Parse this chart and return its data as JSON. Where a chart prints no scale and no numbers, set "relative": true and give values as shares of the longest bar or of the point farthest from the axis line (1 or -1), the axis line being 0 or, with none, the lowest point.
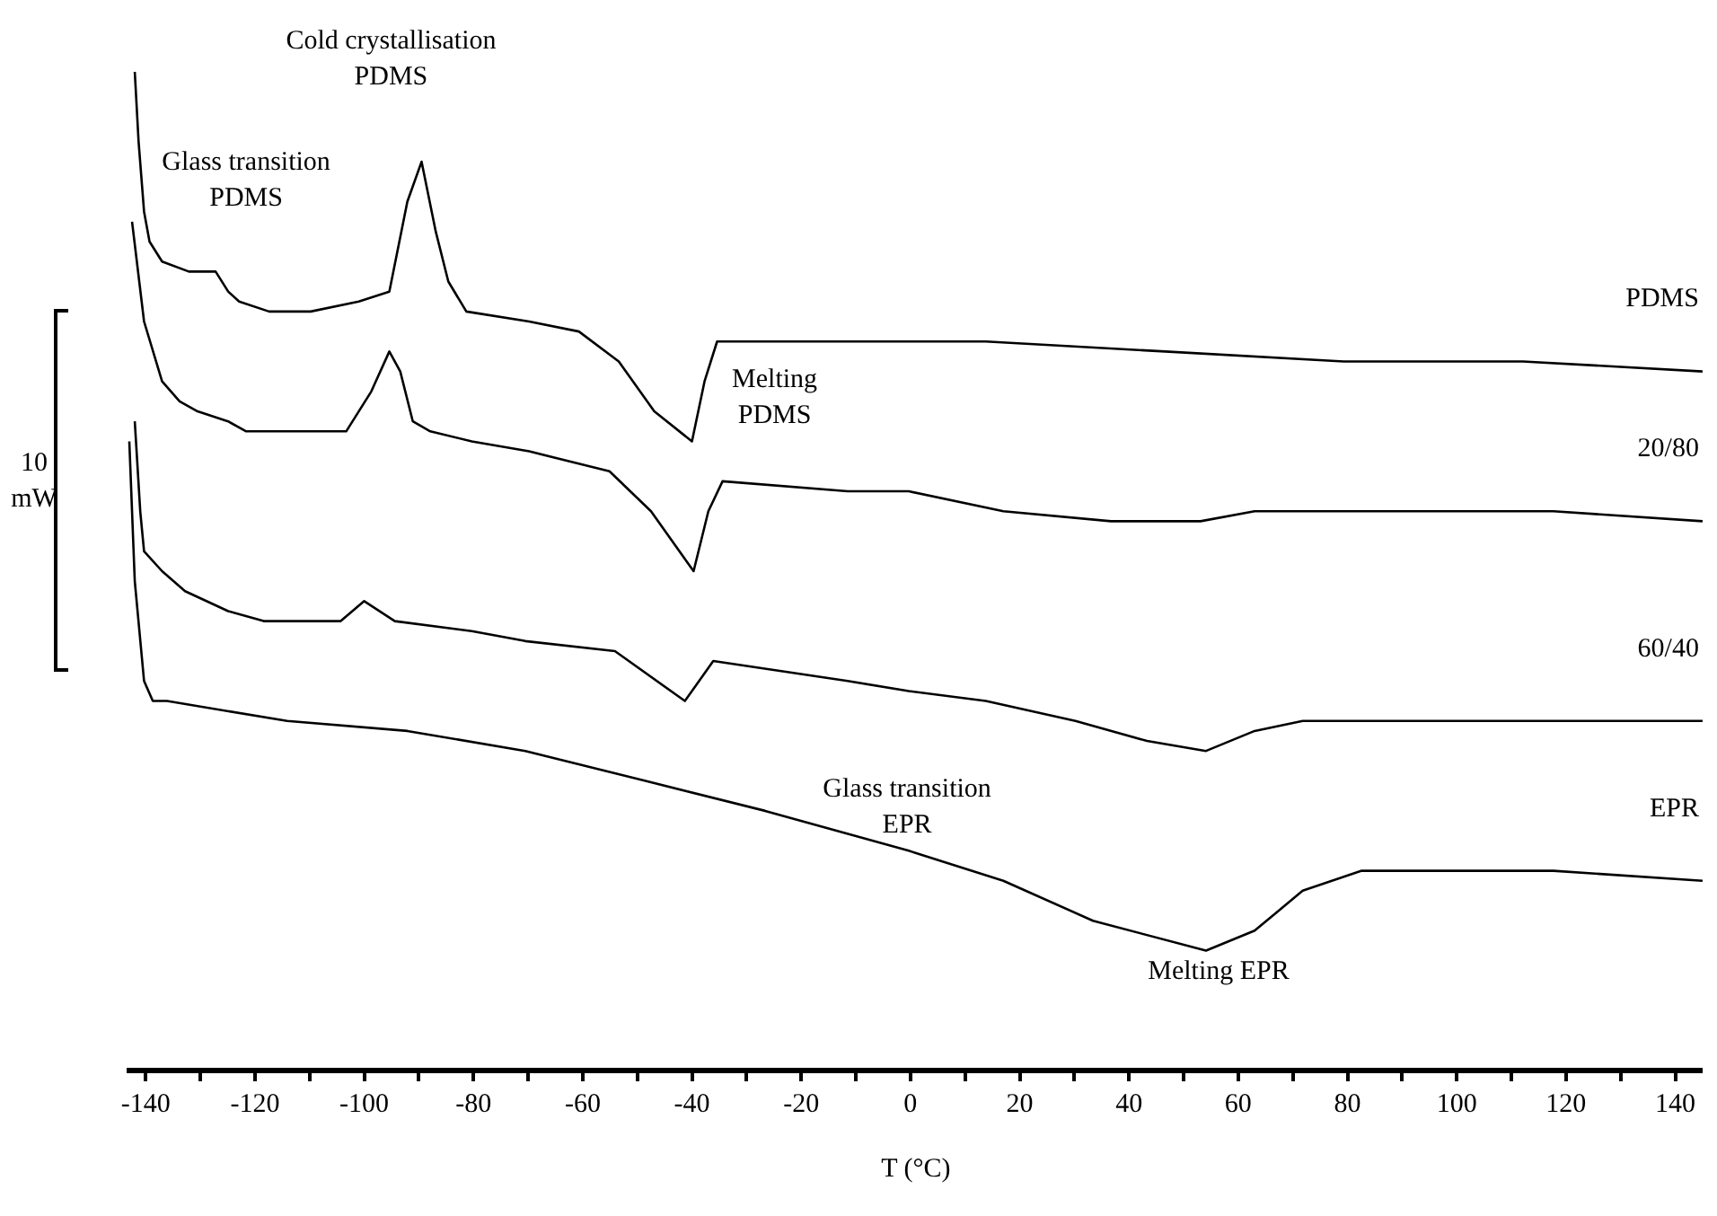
{
  "chart_data": {
    "type": "line",
    "relative": true,
    "xlabel": "T (°C)",
    "xlim": [
      -143,
      145
    ],
    "xticks": [
      -140,
      {
        "value": -130,
        "label": null
      },
      -120,
      {
        "value": -110,
        "label": null
      },
      -100,
      {
        "value": -90,
        "label": null
      },
      -80,
      {
        "value": -70,
        "label": null
      },
      -60,
      {
        "value": -50,
        "label": null
      },
      -40,
      {
        "value": -30,
        "label": null
      },
      -20,
      {
        "value": -10,
        "label": null
      },
      0,
      {
        "value": 10,
        "label": null
      },
      20,
      {
        "value": 30,
        "label": null
      },
      40,
      {
        "value": 50,
        "label": null
      },
      60,
      {
        "value": 70,
        "label": null
      },
      80,
      {
        "value": 90,
        "label": null
      },
      100,
      {
        "value": 110,
        "label": null
      },
      120,
      {
        "value": 130,
        "label": null
      },
      140
    ],
    "grid": false,
    "legend": false,
    "marker": "none",
    "line_style": "solid",
    "series": [
      {
        "name": "PDMS",
        "color": "#000000",
        "x": [
          -142,
          -141.3,
          -140.3,
          -139.3,
          -137,
          -132.1,
          -127.2,
          -124.9,
          -122.9,
          -117.4,
          -109.8,
          -101,
          -95.4,
          -92.1,
          -89.5,
          -86.9,
          -84.6,
          -81.3,
          -69.8,
          -60.7,
          -53.4,
          -46.9,
          -40,
          -37.7,
          -35.4,
          -11.8,
          13.8,
          46.6,
          79.3,
          112.1,
          145
        ],
        "values": [
          1.0,
          0.93,
          0.86,
          0.83,
          0.81,
          0.8,
          0.8,
          0.78,
          0.77,
          0.76,
          0.76,
          0.77,
          0.78,
          0.87,
          0.91,
          0.84,
          0.79,
          0.76,
          0.75,
          0.74,
          0.71,
          0.66,
          0.63,
          0.69,
          0.73,
          0.73,
          0.73,
          0.72,
          0.71,
          0.71,
          0.7
        ]
      },
      {
        "name": "20/80",
        "color": "#000000",
        "x": [
          -142.5,
          -140.3,
          -137,
          -133.8,
          -130.5,
          -124.9,
          -121.6,
          -109.2,
          -103.3,
          -98.7,
          -95.4,
          -93.4,
          -91.1,
          -87.9,
          -80.3,
          -69.8,
          -55.1,
          -47.5,
          -39.7,
          -37,
          -34.4,
          -11.5,
          -0.3,
          17,
          36.7,
          53.1,
          63,
          80.3,
          117.7,
          145
        ],
        "values": [
          0.85,
          0.75,
          0.69,
          0.67,
          0.66,
          0.65,
          0.64,
          0.64,
          0.64,
          0.68,
          0.72,
          0.7,
          0.65,
          0.64,
          0.63,
          0.62,
          0.6,
          0.56,
          0.5,
          0.56,
          0.59,
          0.58,
          0.58,
          0.56,
          0.55,
          0.55,
          0.56,
          0.56,
          0.56,
          0.55
        ]
      },
      {
        "name": "60/40",
        "color": "#000000",
        "x": [
          -142,
          -141,
          -140.3,
          -137,
          -132.8,
          -124.9,
          -118.4,
          -109.2,
          -104.3,
          -100,
          -94.4,
          -80.3,
          -70.5,
          -54.1,
          -41.3,
          -36.1,
          -11.5,
          -0.3,
          13.8,
          30.2,
          43.3,
          54.1,
          63,
          71.8,
          82.6,
          117.7,
          145
        ],
        "values": [
          0.65,
          0.56,
          0.52,
          0.5,
          0.48,
          0.46,
          0.45,
          0.45,
          0.45,
          0.47,
          0.45,
          0.44,
          0.43,
          0.42,
          0.37,
          0.41,
          0.39,
          0.38,
          0.37,
          0.35,
          0.33,
          0.32,
          0.34,
          0.35,
          0.35,
          0.35,
          0.35
        ]
      },
      {
        "name": "EPR",
        "color": "#000000",
        "x": [
          -143,
          -142,
          -140.3,
          -138.7,
          -136.1,
          -114.1,
          -92.1,
          -70.5,
          -48.5,
          -26.6,
          -0.3,
          17,
          33.4,
          54.1,
          63,
          71.8,
          82.6,
          99,
          117.7,
          145
        ],
        "values": [
          0.63,
          0.49,
          0.39,
          0.37,
          0.37,
          0.35,
          0.34,
          0.32,
          0.29,
          0.26,
          0.22,
          0.19,
          0.15,
          0.12,
          0.14,
          0.18,
          0.2,
          0.2,
          0.2,
          0.19
        ]
      }
    ],
    "annotations": [
      {
        "text": "Cold crystallisation\nPDMS",
        "x": -89.5,
        "y": 0.91
      },
      {
        "text": "Glass transition\nPDMS",
        "x": -124.9,
        "y": 0.78
      },
      {
        "text": "Melting\nPDMS",
        "x": -40,
        "y": 0.63
      },
      {
        "text": "Glass transition\nEPR",
        "x": -26.6,
        "y": 0.26
      },
      {
        "text": "Melting EPR",
        "x": 54.1,
        "y": 0.12
      },
      "10\nmW"
    ]
  }
}
